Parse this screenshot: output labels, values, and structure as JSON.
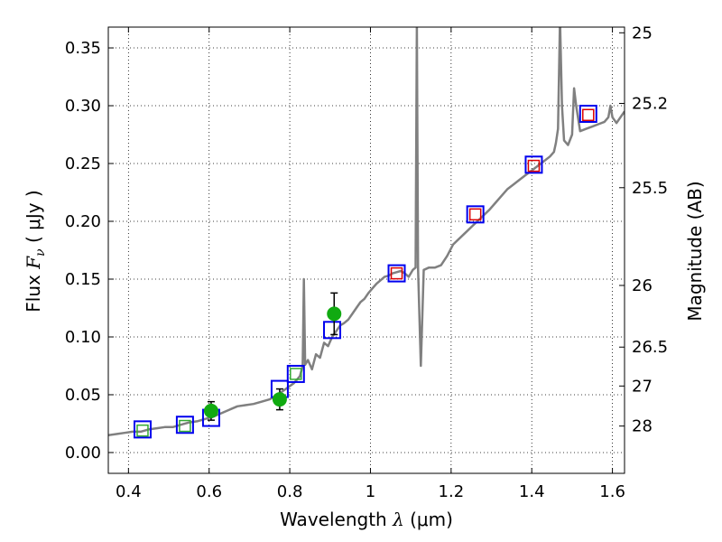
{
  "chart_data": {
    "type": "scatter",
    "xlabel": {
      "prefix": "Wavelength  ",
      "symbol": "λ",
      "unit": " (μm)"
    },
    "ylabel": {
      "prefix": "Flux  ",
      "symbol": "F",
      "sub": "ν",
      "unit": "  ( μJy )"
    },
    "y2label": "Magnitude (AB)",
    "xlim": [
      0.35,
      1.63
    ],
    "ylim": [
      -0.018,
      0.368
    ],
    "grid": true,
    "x_ticks": [
      {
        "value": 0.4,
        "label": "0.4"
      },
      {
        "value": 0.6,
        "label": "0.6"
      },
      {
        "value": 0.8,
        "label": "0.8"
      },
      {
        "value": 1.0,
        "label": "1"
      },
      {
        "value": 1.2,
        "label": "1.2"
      },
      {
        "value": 1.4,
        "label": "1.4"
      },
      {
        "value": 1.6,
        "label": "1.6"
      }
    ],
    "y_ticks": [
      {
        "value": 0.0,
        "label": "0.00"
      },
      {
        "value": 0.05,
        "label": "0.05"
      },
      {
        "value": 0.1,
        "label": "0.10"
      },
      {
        "value": 0.15,
        "label": "0.15"
      },
      {
        "value": 0.2,
        "label": "0.20"
      },
      {
        "value": 0.25,
        "label": "0.25"
      },
      {
        "value": 0.3,
        "label": "0.30"
      },
      {
        "value": 0.35,
        "label": "0.35"
      }
    ],
    "mag_ticks": [
      {
        "value": 25,
        "label": "25"
      },
      {
        "value": 25.2,
        "label": "25.2"
      },
      {
        "value": 25.5,
        "label": "25.5"
      },
      {
        "value": 26,
        "label": "26"
      },
      {
        "value": 26.5,
        "label": "26.5"
      },
      {
        "value": 27,
        "label": "27"
      },
      {
        "value": 28,
        "label": "28"
      }
    ],
    "model_spectrum": {
      "color": "#808080",
      "points": [
        [
          0.35,
          0.015
        ],
        [
          0.37,
          0.016
        ],
        [
          0.39,
          0.017
        ],
        [
          0.41,
          0.018
        ],
        [
          0.43,
          0.018
        ],
        [
          0.45,
          0.02
        ],
        [
          0.47,
          0.021
        ],
        [
          0.49,
          0.022
        ],
        [
          0.51,
          0.022
        ],
        [
          0.53,
          0.024
        ],
        [
          0.55,
          0.026
        ],
        [
          0.57,
          0.027
        ],
        [
          0.59,
          0.029
        ],
        [
          0.61,
          0.031
        ],
        [
          0.63,
          0.034
        ],
        [
          0.65,
          0.037
        ],
        [
          0.67,
          0.04
        ],
        [
          0.69,
          0.041
        ],
        [
          0.71,
          0.042
        ],
        [
          0.73,
          0.044
        ],
        [
          0.75,
          0.046
        ],
        [
          0.77,
          0.05
        ],
        [
          0.79,
          0.055
        ],
        [
          0.81,
          0.06
        ],
        [
          0.825,
          0.066
        ],
        [
          0.832,
          0.075
        ],
        [
          0.835,
          0.15
        ],
        [
          0.838,
          0.076
        ],
        [
          0.845,
          0.08
        ],
        [
          0.855,
          0.072
        ],
        [
          0.865,
          0.085
        ],
        [
          0.875,
          0.082
        ],
        [
          0.885,
          0.095
        ],
        [
          0.895,
          0.092
        ],
        [
          0.905,
          0.1
        ],
        [
          0.915,
          0.105
        ],
        [
          0.925,
          0.11
        ],
        [
          0.935,
          0.112
        ],
        [
          0.945,
          0.115
        ],
        [
          0.955,
          0.12
        ],
        [
          0.965,
          0.125
        ],
        [
          0.975,
          0.13
        ],
        [
          0.985,
          0.133
        ],
        [
          0.995,
          0.138
        ],
        [
          1.005,
          0.142
        ],
        [
          1.015,
          0.146
        ],
        [
          1.025,
          0.149
        ],
        [
          1.035,
          0.152
        ],
        [
          1.045,
          0.153
        ],
        [
          1.055,
          0.155
        ],
        [
          1.065,
          0.156
        ],
        [
          1.075,
          0.157
        ],
        [
          1.085,
          0.155
        ],
        [
          1.095,
          0.152
        ],
        [
          1.105,
          0.158
        ],
        [
          1.112,
          0.16
        ],
        [
          1.115,
          0.37
        ],
        [
          1.118,
          0.16
        ],
        [
          1.125,
          0.075
        ],
        [
          1.132,
          0.158
        ],
        [
          1.145,
          0.16
        ],
        [
          1.16,
          0.16
        ],
        [
          1.175,
          0.162
        ],
        [
          1.19,
          0.17
        ],
        [
          1.205,
          0.18
        ],
        [
          1.22,
          0.185
        ],
        [
          1.235,
          0.19
        ],
        [
          1.25,
          0.195
        ],
        [
          1.265,
          0.2
        ],
        [
          1.28,
          0.205
        ],
        [
          1.295,
          0.21
        ],
        [
          1.31,
          0.216
        ],
        [
          1.325,
          0.222
        ],
        [
          1.34,
          0.228
        ],
        [
          1.355,
          0.232
        ],
        [
          1.37,
          0.236
        ],
        [
          1.385,
          0.24
        ],
        [
          1.4,
          0.244
        ],
        [
          1.415,
          0.248
        ],
        [
          1.43,
          0.252
        ],
        [
          1.445,
          0.256
        ],
        [
          1.455,
          0.26
        ],
        [
          1.46,
          0.268
        ],
        [
          1.465,
          0.28
        ],
        [
          1.47,
          0.375
        ],
        [
          1.475,
          0.3
        ],
        [
          1.48,
          0.27
        ],
        [
          1.49,
          0.266
        ],
        [
          1.5,
          0.275
        ],
        [
          1.505,
          0.315
        ],
        [
          1.51,
          0.3
        ],
        [
          1.52,
          0.278
        ],
        [
          1.535,
          0.28
        ],
        [
          1.55,
          0.282
        ],
        [
          1.565,
          0.284
        ],
        [
          1.58,
          0.286
        ],
        [
          1.59,
          0.29
        ],
        [
          1.595,
          0.3
        ],
        [
          1.6,
          0.29
        ],
        [
          1.61,
          0.285
        ],
        [
          1.62,
          0.29
        ],
        [
          1.63,
          0.295
        ]
      ]
    },
    "model_photometry_blue": {
      "color": "#0000ee",
      "points": [
        [
          0.435,
          0.02
        ],
        [
          0.54,
          0.024
        ],
        [
          0.605,
          0.03
        ],
        [
          0.775,
          0.055
        ],
        [
          0.815,
          0.068
        ],
        [
          0.905,
          0.106
        ],
        [
          1.065,
          0.155
        ],
        [
          1.26,
          0.206
        ],
        [
          1.405,
          0.249
        ],
        [
          1.54,
          0.293
        ]
      ]
    },
    "inner_markers_green": {
      "color": "#33aa33",
      "points": [
        [
          0.435,
          0.019
        ],
        [
          0.54,
          0.023
        ],
        [
          0.815,
          0.068
        ]
      ]
    },
    "inner_markers_red": {
      "color": "#dd0000",
      "points": [
        [
          1.065,
          0.155
        ],
        [
          1.26,
          0.206
        ],
        [
          1.405,
          0.248
        ],
        [
          1.54,
          0.292
        ]
      ]
    },
    "observed": {
      "color": "#11aa11",
      "points": [
        {
          "x": 0.605,
          "y": 0.036,
          "err": 0.008
        },
        {
          "x": 0.775,
          "y": 0.046,
          "err": 0.009
        },
        {
          "x": 0.91,
          "y": 0.12,
          "err": 0.018
        }
      ]
    }
  }
}
